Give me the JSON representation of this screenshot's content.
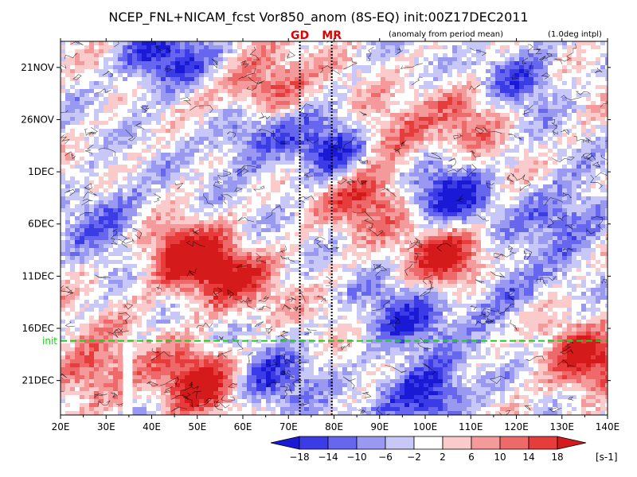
{
  "chart_data": {
    "type": "heatmap",
    "title": "NCEP_FNL+NICAM_fcst Vor850_anom (8S-EQ) init:00Z17DEC2011",
    "note_left": "(anomaly from period mean)",
    "note_right": "(1.0deg intpl)",
    "xlabel": "",
    "ylabel": "",
    "x_ticks": [
      "20E",
      "30E",
      "40E",
      "50E",
      "60E",
      "70E",
      "80E",
      "90E",
      "100E",
      "110E",
      "120E",
      "130E",
      "140E"
    ],
    "xlim": [
      20,
      140
    ],
    "y_ticks": [
      "21NOV",
      "26NOV",
      "1DEC",
      "6DEC",
      "11DEC",
      "16DEC",
      "21DEC"
    ],
    "y_tick_days": [
      21,
      26,
      31,
      36,
      41,
      46,
      51
    ],
    "ylim_days_from_nov1": [
      18.5,
      54.3
    ],
    "init_line": {
      "label": "init",
      "day": 47.2,
      "color": "#22cc22"
    },
    "site_lines": [
      {
        "label": "GD",
        "lon": 72.5
      },
      {
        "label": "MR",
        "lon": 79.5
      }
    ],
    "missing_strip_lon": [
      33.7,
      35.8
    ],
    "colorbar": {
      "unit_label": "[s-1]",
      "tick_labels": [
        "−18",
        "−14",
        "−10",
        "−6",
        "−2",
        "2",
        "6",
        "10",
        "14",
        "18"
      ],
      "colors": [
        "#1a1ad6",
        "#3c3ce6",
        "#6666ee",
        "#9999f2",
        "#c8c8f8",
        "#ffffff",
        "#fbcaca",
        "#f59a9a",
        "#ee6a6a",
        "#e63c3c",
        "#d41a1a"
      ]
    },
    "features": [
      {
        "kind": "positive",
        "lon": 64,
        "day": 23,
        "strength": 0.9
      },
      {
        "kind": "positive",
        "lon": 47,
        "day": 39,
        "strength": 1.0
      },
      {
        "kind": "positive",
        "lon": 57,
        "day": 41,
        "strength": 0.7
      },
      {
        "kind": "positive",
        "lon": 86,
        "day": 33,
        "strength": 0.8
      },
      {
        "kind": "positive",
        "lon": 105,
        "day": 39,
        "strength": 1.0
      },
      {
        "kind": "positive",
        "lon": 90,
        "day": 28,
        "strength": 0.6
      },
      {
        "kind": "positive",
        "lon": 110,
        "day": 25,
        "strength": 0.6
      },
      {
        "kind": "positive",
        "lon": 50,
        "day": 51,
        "strength": 1.0
      },
      {
        "kind": "positive",
        "lon": 135,
        "day": 49,
        "strength": 0.9
      },
      {
        "kind": "positive",
        "lon": 27,
        "day": 50,
        "strength": 0.7
      },
      {
        "kind": "negative",
        "lon": 42,
        "day": 20,
        "strength": 0.9
      },
      {
        "kind": "negative",
        "lon": 62,
        "day": 27,
        "strength": 0.8
      },
      {
        "kind": "negative",
        "lon": 80,
        "day": 29,
        "strength": 1.0
      },
      {
        "kind": "negative",
        "lon": 105,
        "day": 33,
        "strength": 0.9
      },
      {
        "kind": "negative",
        "lon": 120,
        "day": 22,
        "strength": 0.7
      },
      {
        "kind": "negative",
        "lon": 30,
        "day": 35,
        "strength": 0.6
      },
      {
        "kind": "negative",
        "lon": 95,
        "day": 45,
        "strength": 0.7
      },
      {
        "kind": "negative",
        "lon": 115,
        "day": 42,
        "strength": 0.6
      },
      {
        "kind": "negative",
        "lon": 130,
        "day": 35,
        "strength": 0.7
      },
      {
        "kind": "negative",
        "lon": 100,
        "day": 52,
        "strength": 1.0
      },
      {
        "kind": "negative",
        "lon": 65,
        "day": 51,
        "strength": 0.7
      }
    ]
  }
}
